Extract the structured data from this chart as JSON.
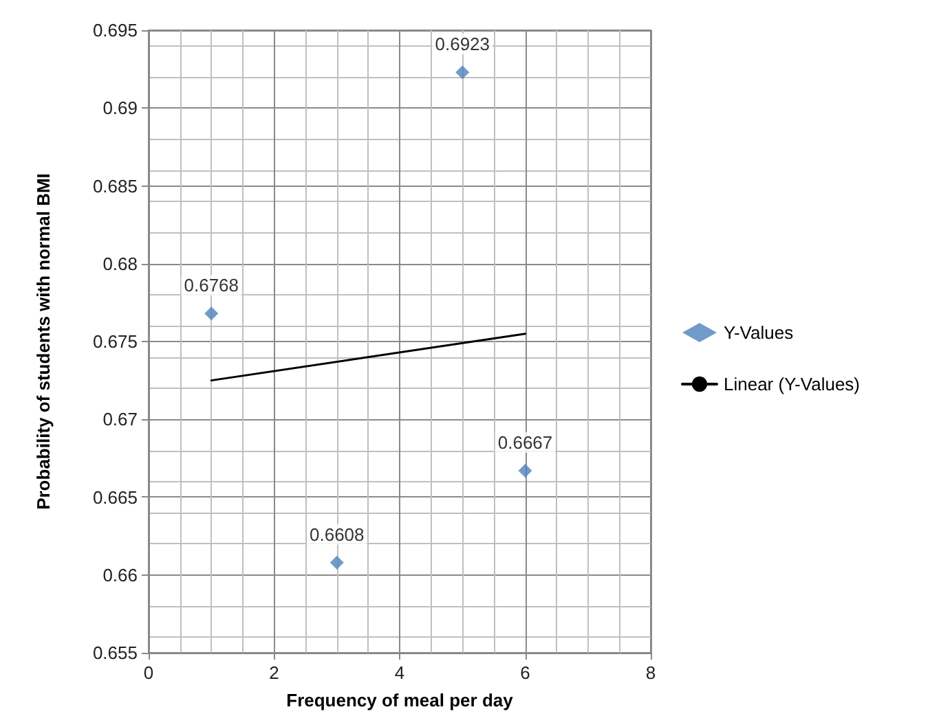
{
  "chart_data": {
    "type": "scatter",
    "xlabel": "Frequency of meal per day",
    "ylabel": "Probability of students with normal BMI",
    "xlim": [
      0,
      8
    ],
    "xticks": [
      0,
      2,
      4,
      6,
      8
    ],
    "ylim": [
      0.655,
      0.695
    ],
    "yticks": [
      0.655,
      0.66,
      0.665,
      0.67,
      0.675,
      0.68,
      0.685,
      0.69,
      0.695
    ],
    "grid": true,
    "legend": "right",
    "series": [
      {
        "name": "Y-Values",
        "marker": "diamond",
        "color": "#4f81bd",
        "x": [
          1,
          3,
          5,
          6
        ],
        "values": [
          0.6768,
          0.6608,
          0.6923,
          0.6667
        ],
        "value_labels": [
          "0.6768",
          "0.6608",
          "0.6923",
          "0.6667"
        ]
      },
      {
        "name": "Linear (Y-Values)",
        "type": "line",
        "color": "#000000",
        "x": [
          1,
          6
        ],
        "values": [
          0.6725,
          0.6755
        ],
        "marker": "none",
        "line_style": "solid"
      }
    ]
  }
}
